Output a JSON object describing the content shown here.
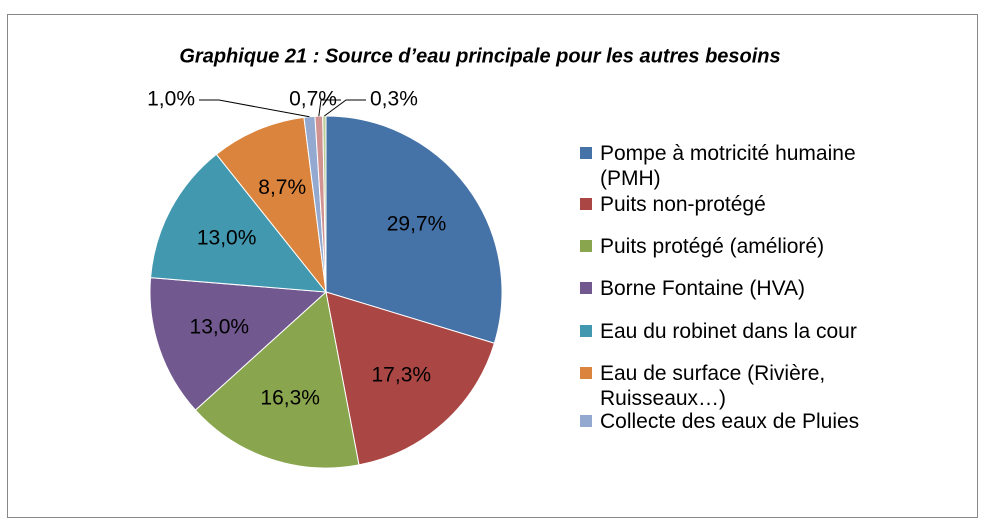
{
  "chart_data": {
    "type": "pie",
    "title": "Graphique 21 : Source d’eau principale pour les autres besoins",
    "categories": [
      "Pompe à motricité humaine (PMH)",
      "Puits non-protégé",
      "Puits protégé (amélioré)",
      "Borne Fontaine (HVA)",
      "Eau du robinet dans la cour",
      "Eau de surface (Rivière, Ruisseaux…)",
      "Collecte des eaux de Pluies",
      null,
      null
    ],
    "values": [
      29.7,
      17.3,
      16.3,
      13.0,
      13.0,
      8.7,
      1.0,
      0.7,
      0.3
    ],
    "value_labels": [
      "29,7%",
      "17,3%",
      "16,3%",
      "13,0%",
      "13,0%",
      "8,7%",
      "1,0%",
      "0,7%",
      "0,3%"
    ],
    "colors": [
      "#4572a7",
      "#aa4643",
      "#89a54e",
      "#71588f",
      "#4198af",
      "#db843d",
      "#93a9cf",
      "#d19392",
      "#b9cd96"
    ],
    "legend": "right"
  }
}
